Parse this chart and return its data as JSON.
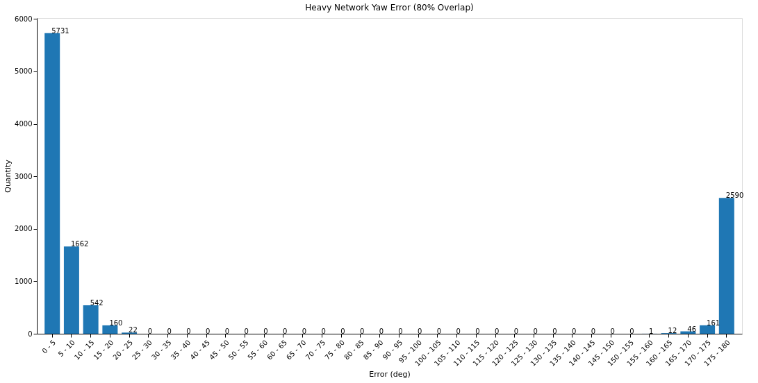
{
  "chart_data": {
    "type": "bar",
    "title": "Heavy Network Yaw Error (80% Overlap)",
    "xlabel": "Error (deg)",
    "ylabel": "Quantity",
    "categories": [
      "0 - 5",
      "5 - 10",
      "10 - 15",
      "15 - 20",
      "20 - 25",
      "25 - 30",
      "30 - 35",
      "35 - 40",
      "40 - 45",
      "45 - 50",
      "50 - 55",
      "55 - 60",
      "60 - 65",
      "65 - 70",
      "70 - 75",
      "75 - 80",
      "80 - 85",
      "85 - 90",
      "90 - 95",
      "95 - 100",
      "100 - 105",
      "105 - 110",
      "110 - 115",
      "115 - 120",
      "120 - 125",
      "125 - 130",
      "130 - 135",
      "135 - 140",
      "140 - 145",
      "145 - 150",
      "150 - 155",
      "155 - 160",
      "160 - 165",
      "165 - 170",
      "170 - 175",
      "175 - 180"
    ],
    "values": [
      5731,
      1662,
      542,
      160,
      22,
      0,
      0,
      0,
      0,
      0,
      0,
      0,
      0,
      0,
      0,
      0,
      0,
      0,
      0,
      0,
      0,
      0,
      0,
      0,
      0,
      0,
      0,
      0,
      0,
      0,
      0,
      1,
      12,
      46,
      161,
      2590
    ],
    "color": "#1f77b4",
    "ylim": [
      0,
      6018
    ],
    "yticks": [
      0,
      1000,
      2000,
      3000,
      4000,
      5000,
      6000
    ],
    "data_labels": true,
    "grid": false
  }
}
